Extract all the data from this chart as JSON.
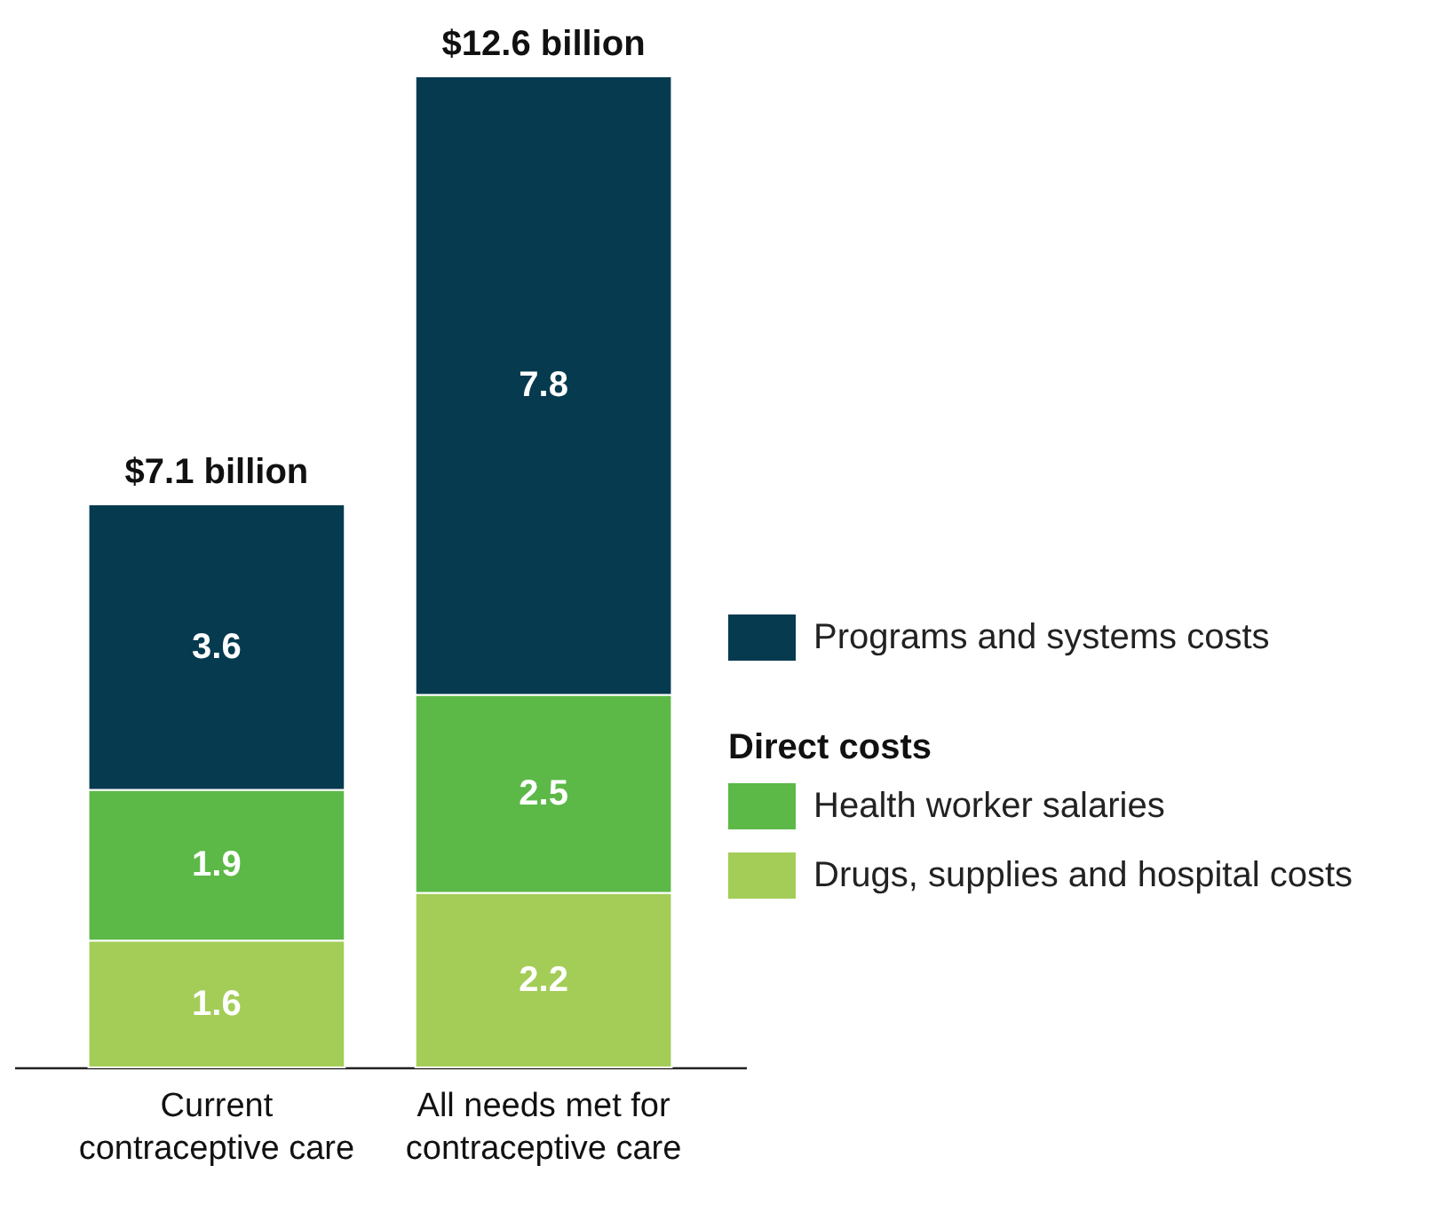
{
  "chart_data": {
    "type": "bar",
    "stacked": true,
    "categories": [
      "Current contraceptive care",
      "All needs met for contraceptive care"
    ],
    "series": [
      {
        "name": "Drugs, supplies and hospital costs",
        "color": "#a3cd57",
        "values": [
          1.6,
          2.2
        ]
      },
      {
        "name": "Health worker salaries",
        "color": "#5cb947",
        "values": [
          1.9,
          2.5
        ]
      },
      {
        "name": "Programs and systems costs",
        "color": "#063a4f",
        "values": [
          3.6,
          7.8
        ]
      }
    ],
    "data_labels": true,
    "totals": [
      "$7.1 billion",
      "$12.6 billion"
    ],
    "annotations": [
      "Direct costs"
    ],
    "legend": "right"
  }
}
